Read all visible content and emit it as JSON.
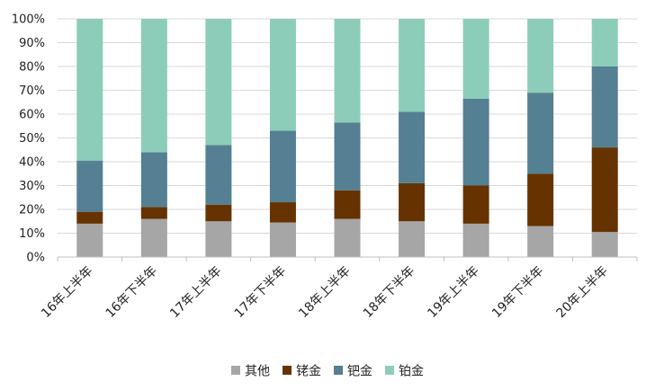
{
  "chart_data": {
    "type": "bar",
    "stacked": true,
    "normalized": true,
    "categories": [
      "16年上半年",
      "16年下半年",
      "17年上半年",
      "17年下半年",
      "18年上半年",
      "18年下半年",
      "19年上半年",
      "19年下半年",
      "20年上半年"
    ],
    "series": [
      {
        "name": "其他",
        "color": "#a6a6a6",
        "values": [
          14,
          16,
          15,
          14.5,
          16,
          15,
          14,
          13,
          10.5
        ]
      },
      {
        "name": "铑金",
        "color": "#663300",
        "values": [
          5,
          5,
          7,
          8.5,
          12,
          16,
          16,
          22,
          35.5
        ]
      },
      {
        "name": "钯金",
        "color": "#557f92",
        "values": [
          21.5,
          23,
          25,
          30,
          28.5,
          30,
          36.5,
          34,
          34
        ]
      },
      {
        "name": "铂金",
        "color": "#8ccdb9",
        "values": [
          59.5,
          56,
          53,
          47,
          43.5,
          39,
          33.5,
          31,
          20
        ]
      }
    ],
    "y_ticks": [
      "0%",
      "10%",
      "20%",
      "30%",
      "40%",
      "50%",
      "60%",
      "70%",
      "80%",
      "90%",
      "100%"
    ],
    "ylim": [
      0,
      100
    ],
    "grid": true,
    "legend_position": "bottom"
  }
}
